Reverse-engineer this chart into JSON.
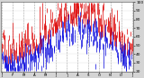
{
  "bg_color": "#d4d4d4",
  "plot_bg": "#ffffff",
  "ylim": [
    20,
    100
  ],
  "ytick_values": [
    20,
    30,
    40,
    50,
    60,
    70,
    80,
    90,
    100
  ],
  "grid_color": "#888888",
  "num_points": 365,
  "blue_color": "#0000dd",
  "red_color": "#dd0000",
  "black_color": "#000000",
  "seed": 42,
  "bar_linewidth": 0.5
}
